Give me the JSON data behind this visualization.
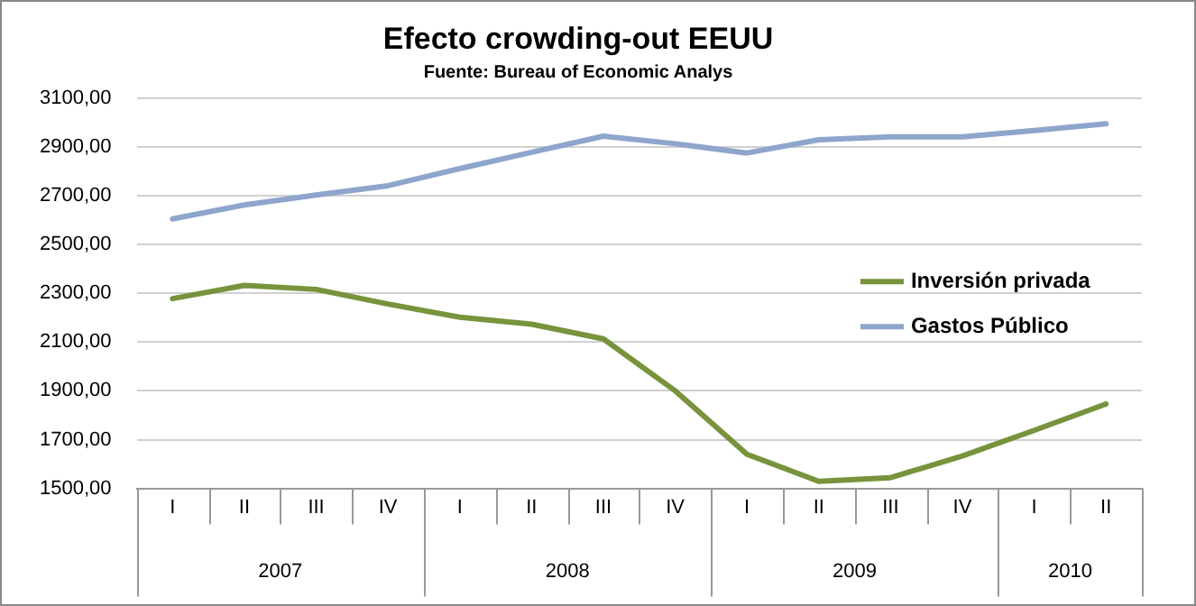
{
  "chart_data": {
    "type": "line",
    "title": "Efecto crowding-out EEUU",
    "subtitle": "Fuente: Bureau of Economic Analys",
    "categories": [
      "I",
      "II",
      "III",
      "IV",
      "I",
      "II",
      "III",
      "IV",
      "I",
      "II",
      "III",
      "IV",
      "I",
      "II"
    ],
    "annotations": [
      "2007",
      "2008",
      "2009",
      "2010"
    ],
    "series": [
      {
        "name": "Inversión privada",
        "color": "#77933c",
        "values": [
          2278,
          2332,
          2316,
          2256,
          2202,
          2173,
          2113,
          1900,
          1640,
          1529,
          1544,
          1633,
          1738,
          1846
        ]
      },
      {
        "name": "Gastos Público",
        "color": "#8ea5cc",
        "values": [
          2605,
          2662,
          2703,
          2741,
          2811,
          2878,
          2944,
          2913,
          2875,
          2929,
          2941,
          2941,
          2967,
          2995
        ]
      }
    ],
    "ylim": [
      1500,
      3100
    ],
    "yticks": [
      {
        "value": 1500,
        "label": "1500,00"
      },
      {
        "value": 1700,
        "label": "1700,00"
      },
      {
        "value": 1900,
        "label": "1900,00"
      },
      {
        "value": 2100,
        "label": "2100,00"
      },
      {
        "value": 2300,
        "label": "2300,00"
      },
      {
        "value": 2500,
        "label": "2500,00"
      },
      {
        "value": 2700,
        "label": "2700,00"
      },
      {
        "value": 2900,
        "label": "2900,00"
      },
      {
        "value": 3100,
        "label": "3100,00"
      }
    ],
    "grid": "y",
    "legend": "right",
    "marker": "none",
    "line_style": "solid"
  }
}
